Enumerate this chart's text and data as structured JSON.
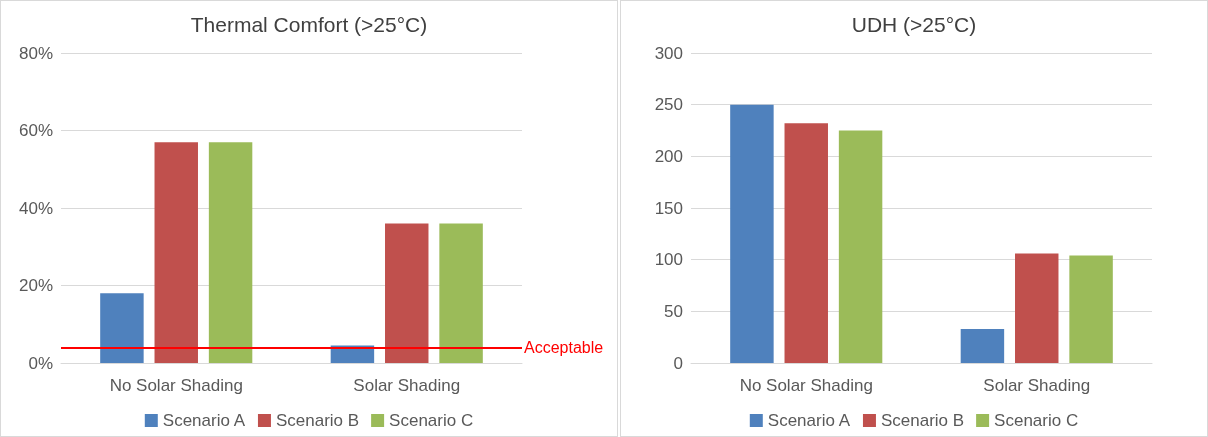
{
  "chart_data": [
    {
      "type": "bar",
      "title": "Thermal Comfort (>25°C)",
      "categories": [
        "No Solar Shading",
        "Solar Shading"
      ],
      "series": [
        {
          "name": "Scenario A",
          "color": "#4f81bd",
          "values": [
            18,
            4.5
          ]
        },
        {
          "name": "Scenario B",
          "color": "#c0504d",
          "values": [
            57,
            36
          ]
        },
        {
          "name": "Scenario C",
          "color": "#9bbb59",
          "values": [
            57,
            36
          ]
        }
      ],
      "ylim": [
        0,
        80
      ],
      "yticks": [
        {
          "value": 0,
          "label": "0%"
        },
        {
          "value": 20,
          "label": "20%"
        },
        {
          "value": 40,
          "label": "40%"
        },
        {
          "value": 60,
          "label": "60%"
        },
        {
          "value": 80,
          "label": "80%"
        }
      ],
      "ref_lines": [
        {
          "axis": "y",
          "value": 4,
          "label": "Acceptable",
          "color": "#ff0000"
        }
      ],
      "grid": "y",
      "legend": "bottom"
    },
    {
      "type": "bar",
      "title": "UDH (>25°C)",
      "categories": [
        "No Solar Shading",
        "Solar Shading"
      ],
      "series": [
        {
          "name": "Scenario A",
          "color": "#4f81bd",
          "values": [
            250,
            33
          ]
        },
        {
          "name": "Scenario B",
          "color": "#c0504d",
          "values": [
            232,
            106
          ]
        },
        {
          "name": "Scenario C",
          "color": "#9bbb59",
          "values": [
            225,
            104
          ]
        }
      ],
      "ylim": [
        0,
        300
      ],
      "yticks": [
        0,
        50,
        100,
        150,
        200,
        250,
        300
      ],
      "grid": "y",
      "legend": "bottom"
    }
  ]
}
